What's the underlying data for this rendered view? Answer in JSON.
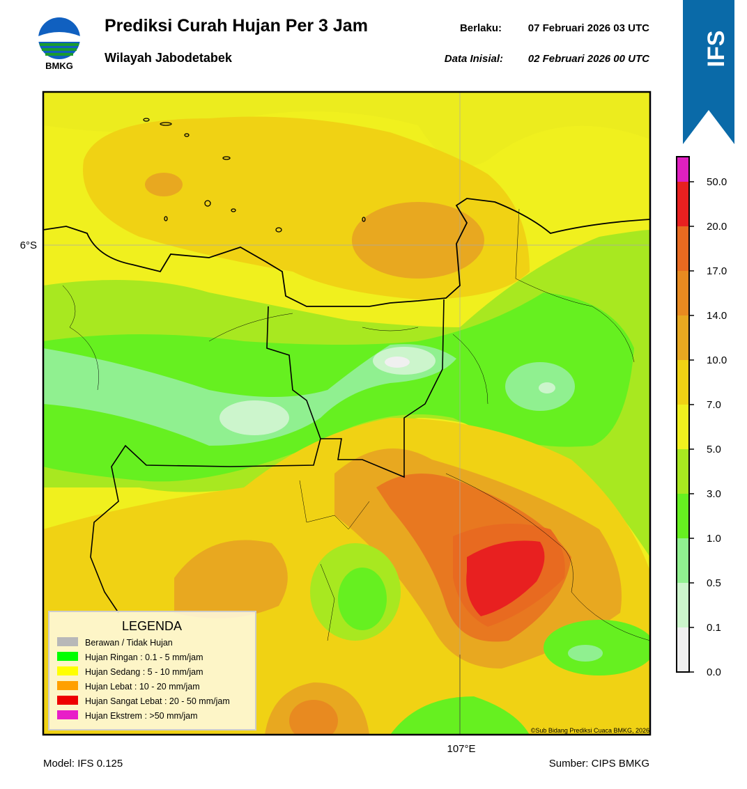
{
  "header": {
    "logo_text": "BMKG",
    "title": "Prediksi Curah Hujan Per 3 Jam",
    "subtitle": "Wilayah Jabodetabek",
    "valid_label": "Berlaku:",
    "valid_time": "07 Februari 2026 03 UTC",
    "init_label": "Data Inisial:",
    "init_time": "02 Februari 2026 00 UTC",
    "badge": "IFS"
  },
  "map": {
    "lat_label": "6°S",
    "lon_label": "107°E",
    "credit": "©Sub Bidang Prediksi Cuaca BMKG, 2026"
  },
  "legend": {
    "title": "LEGENDA",
    "items": [
      {
        "label": "Berawan / Tidak Hujan",
        "color": "#b8b8b8"
      },
      {
        "label": "Hujan Ringan : 0.1 - 5 mm/jam",
        "color": "#00ff00"
      },
      {
        "label": "Hujan Sedang : 5 - 10 mm/jam",
        "color": "#ffff00"
      },
      {
        "label": "Hujan Lebat : 10 - 20 mm/jam",
        "color": "#ffa000"
      },
      {
        "label": "Hujan Sangat Lebat : 20 - 50 mm/jam",
        "color": "#ee0000"
      },
      {
        "label": "Hujan Ekstrem : >50 mm/jam",
        "color": "#e81ec8"
      }
    ]
  },
  "colorbar": {
    "ticks": [
      "0.0",
      "0.1",
      "0.5",
      "1.0",
      "3.0",
      "5.0",
      "7.0",
      "10.0",
      "14.0",
      "17.0",
      "20.0",
      "50.0"
    ],
    "colors": [
      "#f0f0f0",
      "#ccf5cc",
      "#90f090",
      "#66f020",
      "#a8e820",
      "#f0f01e",
      "#f0d214",
      "#e8a820",
      "#e88a20",
      "#e86a20",
      "#e82020",
      "#e020c0"
    ]
  },
  "footer": {
    "model": "Model: IFS 0.125",
    "source": "Sumber: CIPS BMKG"
  }
}
